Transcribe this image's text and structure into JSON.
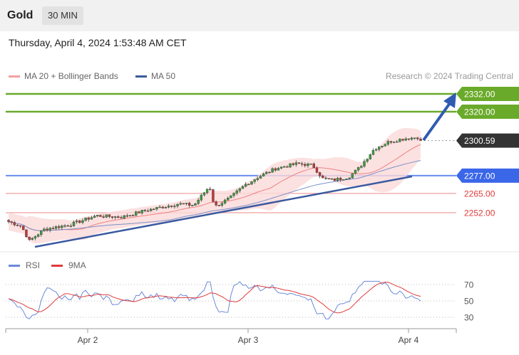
{
  "header": {
    "symbol": "Gold",
    "timeframe": "30 MIN",
    "datetime": "Thursday, April 4, 2024 1:53:48 AM CET"
  },
  "legend": {
    "ma20_label": "MA 20 + Bollinger Bands",
    "ma50_label": "MA 50",
    "credit": "Research © 2024 Trading Central",
    "ma20_color": "#f08080",
    "ma50_color": "#3a5a9a"
  },
  "chart_data": [
    {
      "type": "line",
      "title": "",
      "xlabel": "",
      "ylabel": "",
      "ylim": [
        2233,
        2340
      ],
      "x_ticks": [
        "Apr 2",
        "Apr 3",
        "Apr 4"
      ],
      "candle_count": 140,
      "series": [
        {
          "name": "MA 20 + Bollinger Bands",
          "color": "#f08080"
        },
        {
          "name": "MA 50",
          "color": "#3a5a9a"
        }
      ],
      "last_price": 2300.59,
      "levels": [
        {
          "value": 2332.0,
          "label": "2332.00",
          "color": "#6aaa2a",
          "kind": "resistance"
        },
        {
          "value": 2320.0,
          "label": "2320.00",
          "color": "#6aaa2a",
          "kind": "resistance"
        },
        {
          "value": 2300.59,
          "label": "2300.59",
          "color": "#333333",
          "kind": "last"
        },
        {
          "value": 2277.0,
          "label": "2277.00",
          "color": "#4a6cf7",
          "kind": "pivot"
        },
        {
          "value": 2265.0,
          "label": "2265.00",
          "color": "#e03a3a",
          "kind": "support"
        },
        {
          "value": 2252.0,
          "label": "2252.00",
          "color": "#e03a3a",
          "kind": "support"
        }
      ]
    },
    {
      "type": "line",
      "title": "",
      "ylim": [
        20,
        80
      ],
      "y_ticks": [
        70,
        50,
        30
      ],
      "series": [
        {
          "name": "RSI",
          "color": "#6a8ad8"
        },
        {
          "name": "9MA",
          "color": "#e03a3a"
        }
      ]
    }
  ]
}
